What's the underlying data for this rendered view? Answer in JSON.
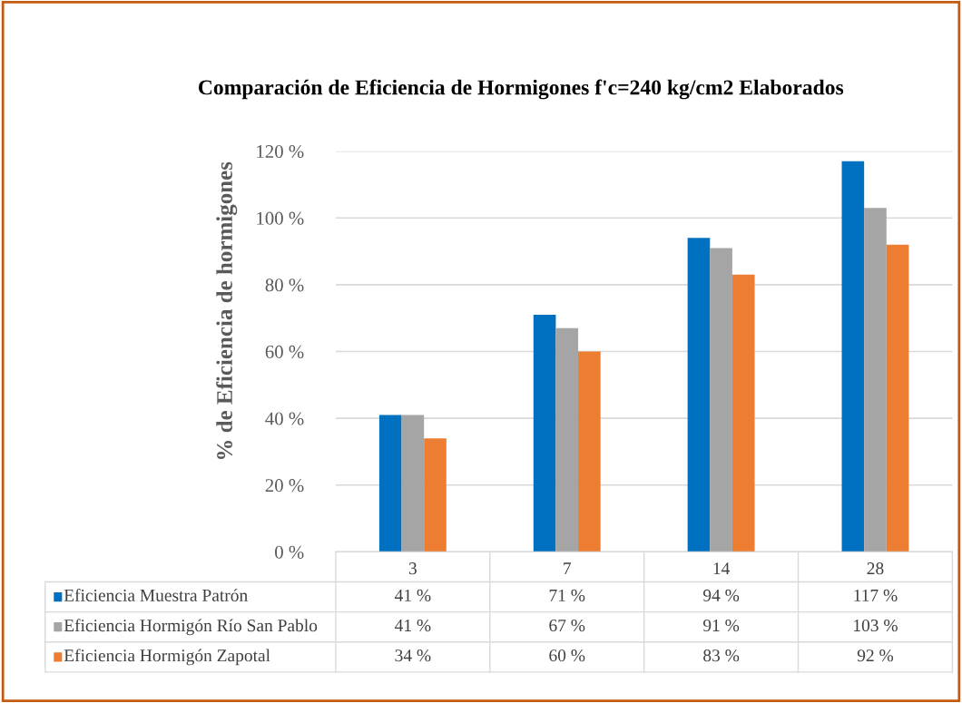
{
  "chart_data": {
    "type": "bar",
    "title": "Comparación de Eficiencia de Hormigones f'c=240 kg/cm2 Elaborados",
    "ylabel": "% de Eficiencia de hormigones",
    "categories": [
      "3",
      "7",
      "14",
      "28"
    ],
    "series": [
      {
        "name": "Eficiencia Muestra Patrón",
        "color": "#0070c0",
        "values": [
          41,
          71,
          94,
          117
        ],
        "value_labels": [
          "41 %",
          "71 %",
          "94 %",
          "117 %"
        ]
      },
      {
        "name": "Eficiencia Hormigón Río San Pablo",
        "color": "#a5a5a5",
        "values": [
          41,
          67,
          91,
          103
        ],
        "value_labels": [
          "41 %",
          "67 %",
          "91 %",
          "103 %"
        ]
      },
      {
        "name": "Eficiencia Hormigón Zapotal",
        "color": "#ed7d31",
        "values": [
          34,
          60,
          83,
          92
        ],
        "value_labels": [
          "34 %",
          "60 %",
          "83 %",
          "92 %"
        ]
      }
    ],
    "ylim": [
      0,
      120
    ],
    "yticks": [
      {
        "value": 0,
        "label": "0 %"
      },
      {
        "value": 20,
        "label": "20 %"
      },
      {
        "value": 40,
        "label": "40 %"
      },
      {
        "value": 60,
        "label": "60 %"
      },
      {
        "value": 80,
        "label": "80 %"
      },
      {
        "value": 100,
        "label": "100 %"
      },
      {
        "value": 120,
        "label": "120 %"
      }
    ],
    "grid": "y",
    "legend": "bottom"
  }
}
